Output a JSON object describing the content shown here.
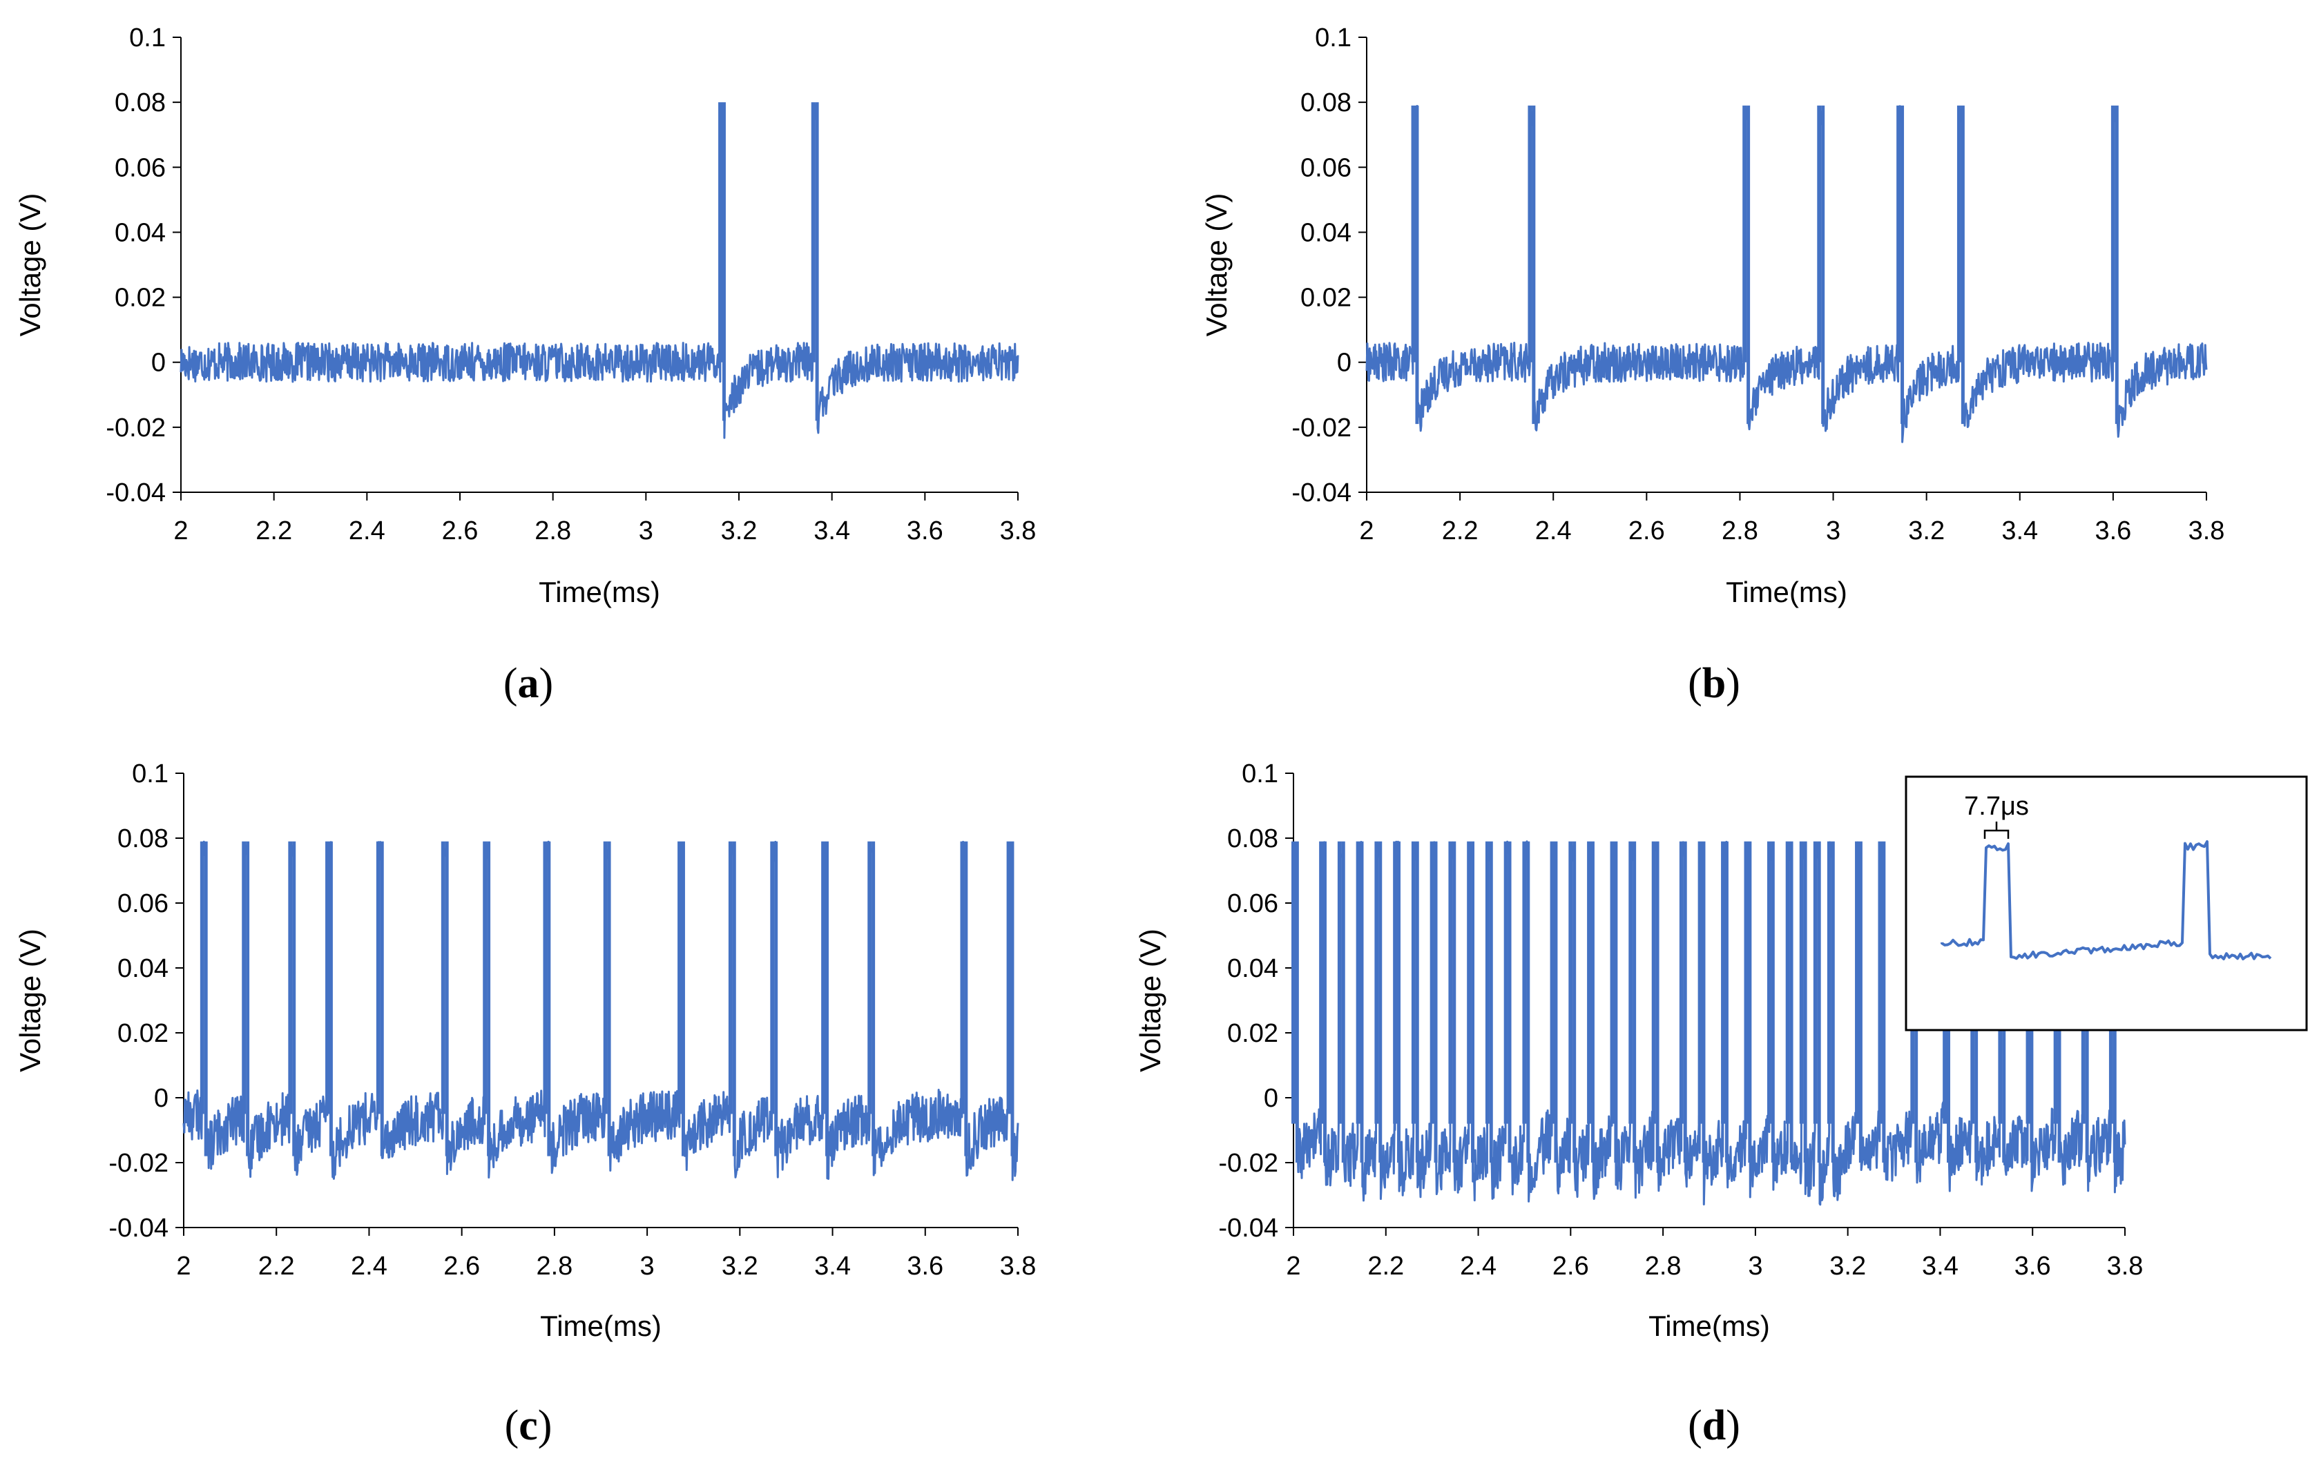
{
  "colors": {
    "trace": "#4472C4",
    "axis": "#000000"
  },
  "chart_data": [
    {
      "panel": "a",
      "type": "line",
      "xlabel": "Time(ms)",
      "ylabel": "Voltage (V)",
      "xlim": [
        2,
        3.8
      ],
      "ylim": [
        -0.04,
        0.1
      ],
      "xticks": [
        "2",
        "2.2",
        "2.4",
        "2.6",
        "2.8",
        "3",
        "3.2",
        "3.4",
        "3.6",
        "3.8"
      ],
      "yticks": [
        "0.1",
        "0.08",
        "0.06",
        "0.04",
        "0.02",
        "0",
        "-0.02",
        "-0.04"
      ],
      "baseline": 0,
      "noise": 0.006,
      "spikes": [
        3.16,
        3.36
      ],
      "spike_peak": 0.08,
      "undershoot": -0.018,
      "x_end": 3.8,
      "label_prefix": "(",
      "label_letter": "a",
      "label_suffix": ")"
    },
    {
      "panel": "b",
      "type": "line",
      "xlabel": "Time(ms)",
      "ylabel": "Voltage (V)",
      "xlim": [
        2,
        3.8
      ],
      "ylim": [
        -0.04,
        0.1
      ],
      "xticks": [
        "2",
        "2.2",
        "2.4",
        "2.6",
        "2.8",
        "3",
        "3.2",
        "3.4",
        "3.6",
        "3.8"
      ],
      "yticks": [
        "0.1",
        "0.08",
        "0.06",
        "0.04",
        "0.02",
        "0",
        "-0.02",
        "-0.04"
      ],
      "baseline": 0,
      "noise": 0.006,
      "spikes": [
        2.1,
        2.35,
        2.81,
        2.97,
        3.14,
        3.27,
        3.6
      ],
      "spike_peak": 0.079,
      "undershoot": -0.019,
      "x_end": 3.8,
      "label_prefix": "(",
      "label_letter": "b",
      "label_suffix": ")"
    },
    {
      "panel": "c",
      "type": "line",
      "xlabel": "Time(ms)",
      "ylabel": "Voltage (V)",
      "xlim": [
        2,
        3.8
      ],
      "ylim": [
        -0.04,
        0.1
      ],
      "xticks": [
        "2",
        "2.2",
        "2.4",
        "2.6",
        "2.8",
        "3",
        "3.2",
        "3.4",
        "3.6",
        "3.8"
      ],
      "yticks": [
        "0.1",
        "0.08",
        "0.06",
        "0.04",
        "0.02",
        "0",
        "-0.02",
        "-0.04"
      ],
      "baseline": -0.005,
      "noise": 0.008,
      "spikes": [
        2.04,
        2.13,
        2.23,
        2.31,
        2.42,
        2.56,
        2.65,
        2.78,
        2.91,
        3.07,
        3.18,
        3.27,
        3.38,
        3.48,
        3.68,
        3.78
      ],
      "spike_peak": 0.079,
      "undershoot": -0.018,
      "x_end": 3.8,
      "label_prefix": "(",
      "label_letter": "c",
      "label_suffix": ")"
    },
    {
      "panel": "d",
      "type": "line",
      "xlabel": "Time(ms)",
      "ylabel": "Voltage (V)",
      "xlim": [
        2,
        3.8
      ],
      "ylim": [
        -0.04,
        0.1
      ],
      "xticks": [
        "2",
        "2.2",
        "2.4",
        "2.6",
        "2.8",
        "3",
        "3.2",
        "3.4",
        "3.6",
        "3.8"
      ],
      "yticks": [
        "0.1",
        "0.08",
        "0.06",
        "0.04",
        "0.02",
        "0",
        "-0.02",
        "-0.04"
      ],
      "baseline": -0.008,
      "noise": 0.009,
      "spikes": [
        2.0,
        2.06,
        2.1,
        2.14,
        2.18,
        2.22,
        2.26,
        2.3,
        2.34,
        2.38,
        2.42,
        2.46,
        2.5,
        2.56,
        2.6,
        2.64,
        2.69,
        2.73,
        2.78,
        2.84,
        2.88,
        2.93,
        2.98,
        3.03,
        3.07,
        3.1,
        3.13,
        3.16,
        3.22,
        3.27,
        3.34,
        3.41,
        3.47,
        3.53,
        3.59,
        3.65,
        3.71,
        3.77
      ],
      "spike_peak": 0.079,
      "undershoot": -0.02,
      "x_end": 3.8,
      "inset": {
        "label": "7.7μs"
      },
      "label_prefix": "(",
      "label_letter": "d",
      "label_suffix": ")"
    }
  ]
}
